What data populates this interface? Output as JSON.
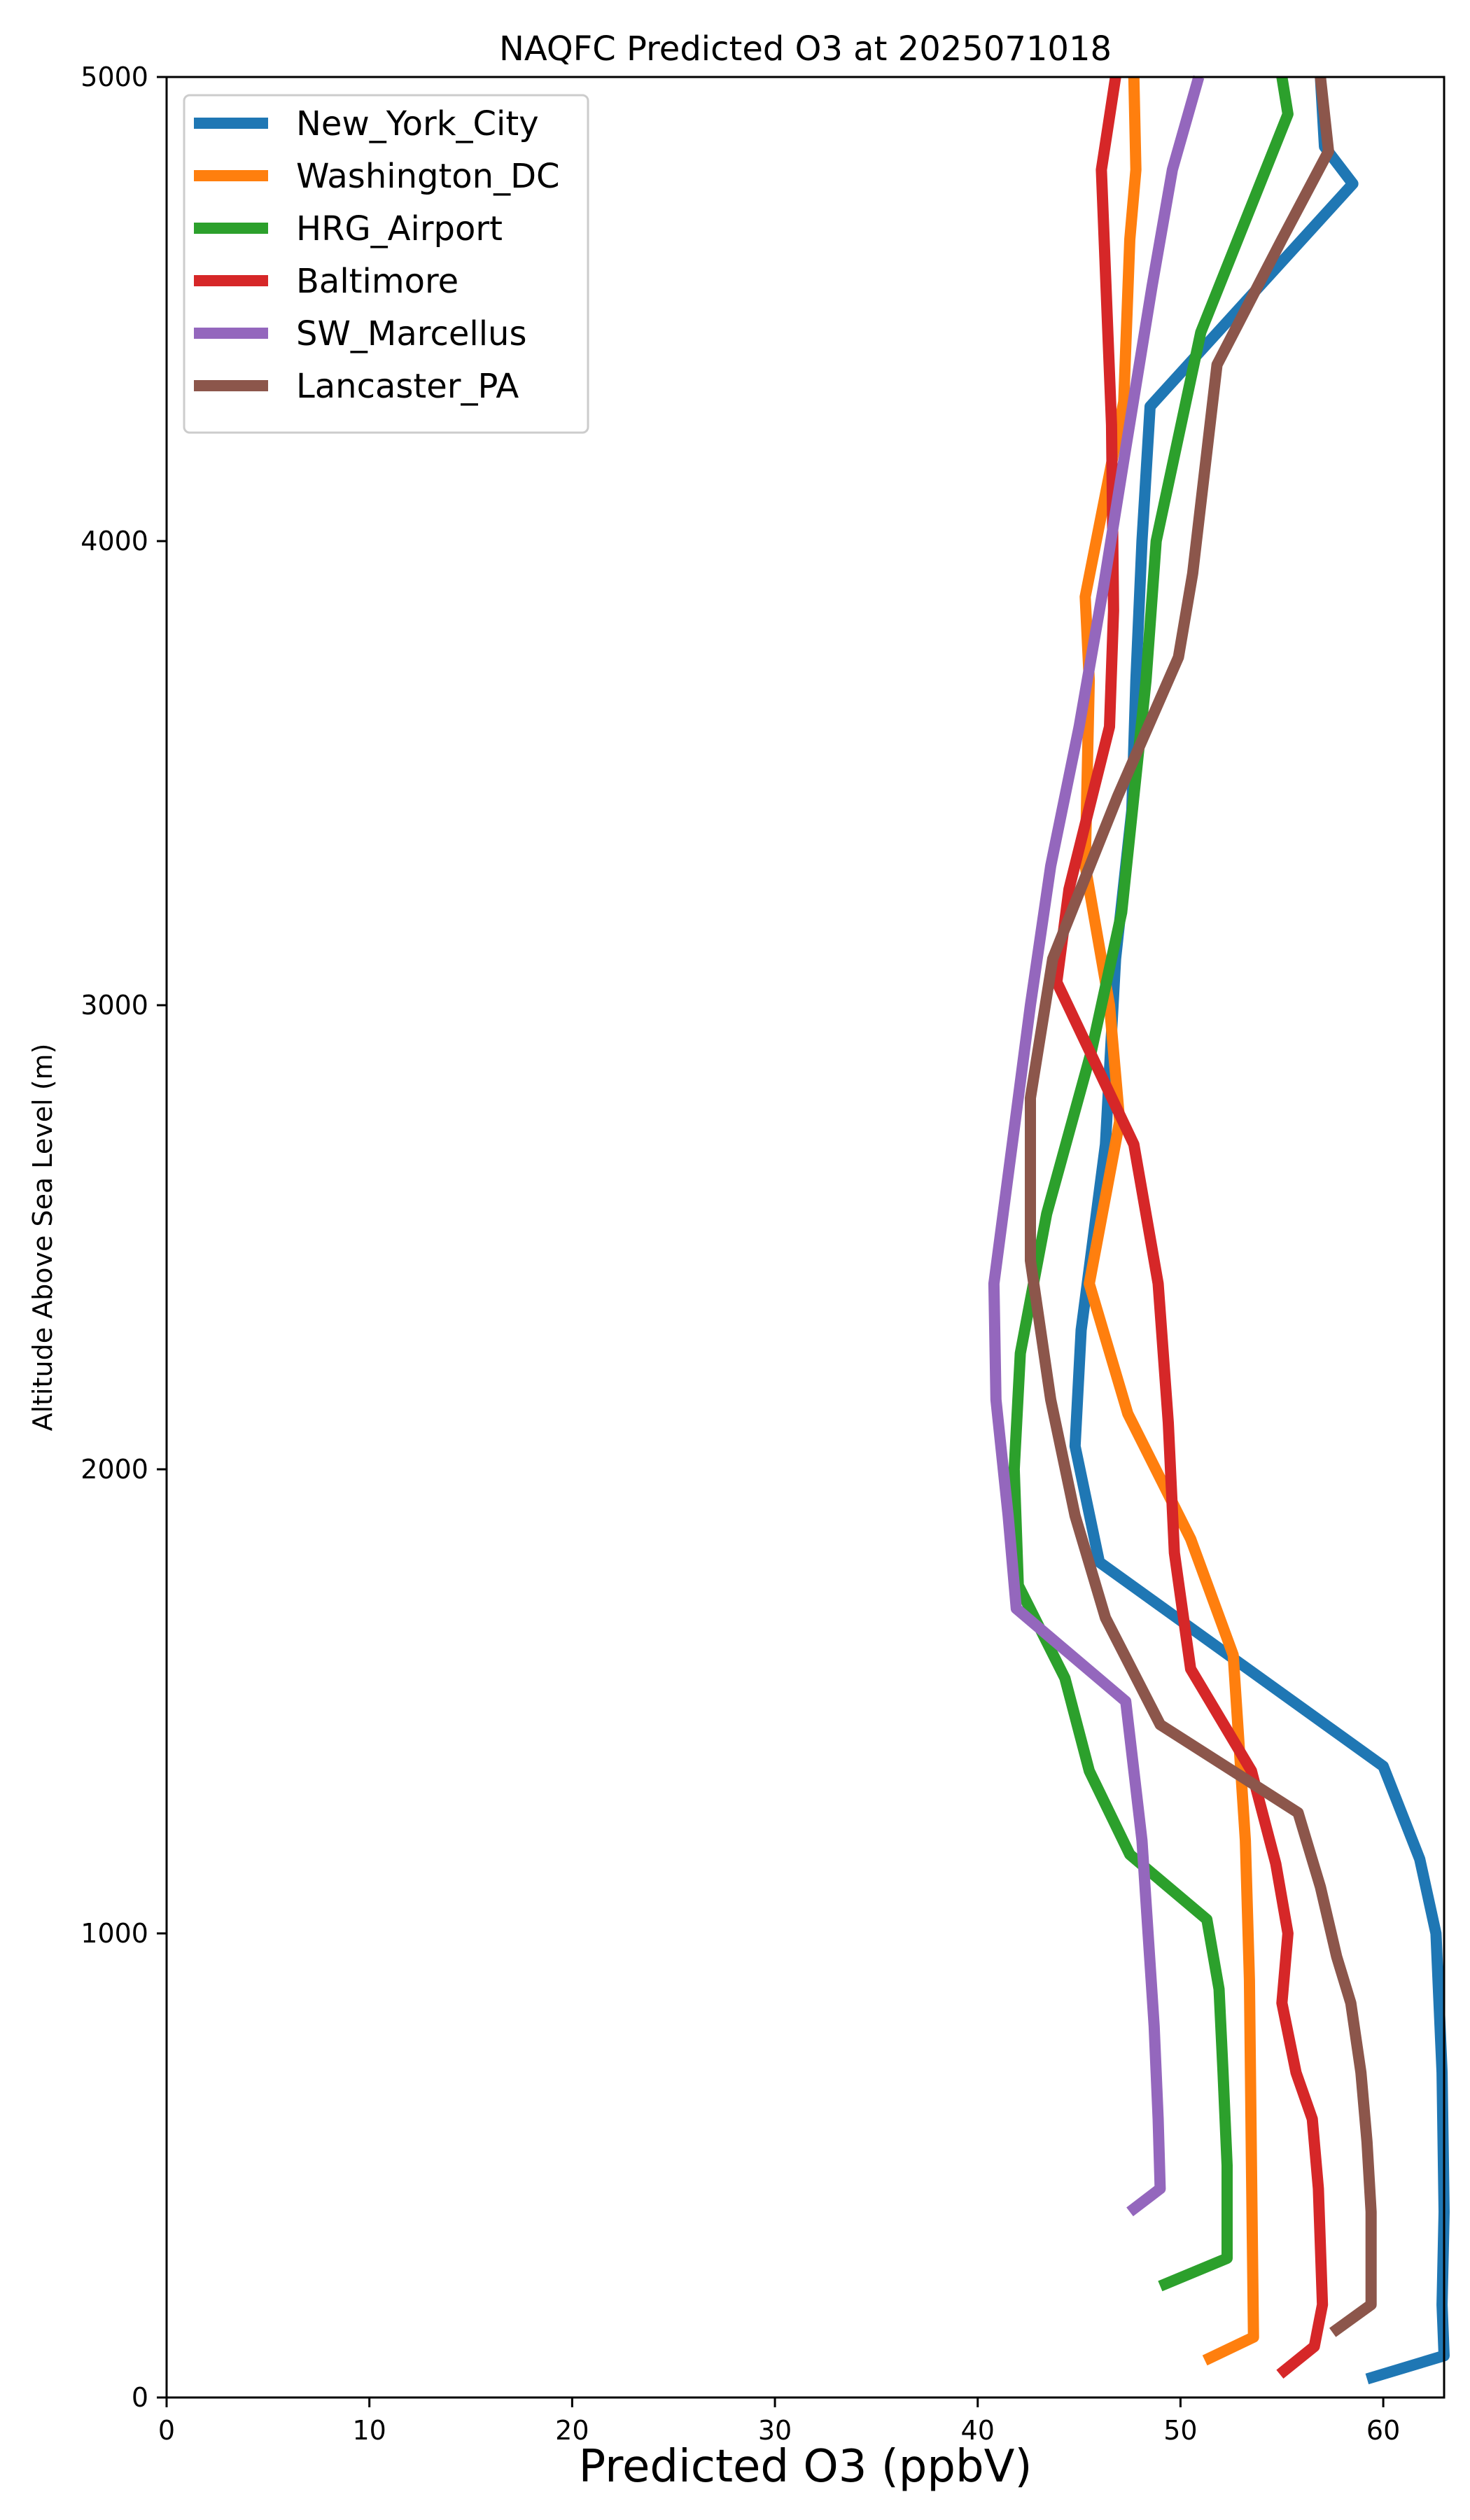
{
  "chart_data": {
    "type": "line",
    "title": "NAQFC Predicted O3 at 2025071018",
    "xlabel": "Predicted O3 (ppbV)",
    "ylabel": "Altitude Above Sea Level (m)",
    "xlim": [
      0,
      63
    ],
    "ylim": [
      0,
      5000
    ],
    "xticks": [
      0,
      10,
      20,
      30,
      40,
      50,
      60
    ],
    "yticks": [
      0,
      1000,
      2000,
      3000,
      4000,
      5000
    ],
    "grid": false,
    "legend_position": "top-left",
    "series": [
      {
        "name": "New_York_City",
        "color": "#1f77b4",
        "x": [
          59.2,
          63.0,
          62.9,
          63.0,
          62.9,
          62.6,
          61.8,
          60.0,
          46.0,
          44.8,
          45.1,
          45.4,
          46.3,
          46.8,
          47.6,
          47.8,
          48.1,
          48.5,
          58.5,
          57.1,
          56.9
        ],
        "y": [
          40,
          90,
          200,
          400,
          700,
          1000,
          1160,
          1360,
          1800,
          2050,
          2300,
          2400,
          2700,
          3100,
          3420,
          3700,
          4000,
          4290,
          4770,
          4850,
          5000
        ]
      },
      {
        "name": "Washington_DC",
        "color": "#ff7f0e",
        "x": [
          51.2,
          53.6,
          53.5,
          53.4,
          53.2,
          52.6,
          50.5,
          47.4,
          45.5,
          47.0,
          46.5,
          45.3,
          45.5,
          45.3,
          47.2,
          47.5,
          47.8,
          47.7
        ],
        "y": [
          80,
          130,
          500,
          900,
          1200,
          1600,
          1850,
          2120,
          2400,
          2750,
          3000,
          3300,
          3700,
          3880,
          4300,
          4650,
          4800,
          5000
        ]
      },
      {
        "name": "HRG_Airport",
        "color": "#2ca02c",
        "x": [
          49.0,
          52.3,
          52.3,
          52.1,
          51.9,
          51.3,
          47.5,
          45.5,
          44.3,
          42.0,
          41.8,
          42.1,
          43.4,
          45.6,
          47.1,
          48.3,
          48.8,
          51.0,
          55.3,
          55.0
        ],
        "y": [
          240,
          300,
          500,
          700,
          880,
          1030,
          1170,
          1350,
          1550,
          1750,
          2000,
          2250,
          2550,
          2900,
          3200,
          3700,
          4000,
          4450,
          4920,
          5000
        ]
      },
      {
        "name": "Baltimore",
        "color": "#d62728",
        "x": [
          54.9,
          56.6,
          57.0,
          56.8,
          56.5,
          55.7,
          55.0,
          55.3,
          54.7,
          53.5,
          50.5,
          49.7,
          49.4,
          48.9,
          47.7,
          43.9,
          44.5,
          46.5,
          46.7,
          46.6,
          46.1,
          46.8
        ],
        "y": [
          50,
          110,
          200,
          450,
          600,
          700,
          850,
          1000,
          1150,
          1350,
          1570,
          1820,
          2100,
          2400,
          2700,
          3050,
          3250,
          3600,
          3850,
          4250,
          4800,
          5000
        ]
      },
      {
        "name": "SW_Marcellus",
        "color": "#9467bd",
        "x": [
          47.5,
          49.0,
          48.9,
          48.7,
          48.4,
          48.1,
          47.7,
          47.3,
          41.9,
          41.5,
          40.9,
          40.8,
          41.7,
          42.6,
          43.6,
          45.0,
          46.2,
          47.3,
          48.6,
          49.6,
          50.9
        ],
        "y": [
          400,
          450,
          600,
          800,
          1000,
          1200,
          1350,
          1500,
          1700,
          1900,
          2150,
          2400,
          2700,
          3000,
          3300,
          3600,
          3900,
          4200,
          4550,
          4800,
          5000
        ]
      },
      {
        "name": "Lancaster_PA",
        "color": "#8c564b",
        "x": [
          57.5,
          59.4,
          59.4,
          59.2,
          58.9,
          58.4,
          57.7,
          56.9,
          55.8,
          49.0,
          46.3,
          44.8,
          43.6,
          42.6,
          42.6,
          43.7,
          46.9,
          49.9,
          50.6,
          51.8,
          55.0,
          57.3,
          56.9
        ],
        "y": [
          140,
          200,
          400,
          550,
          700,
          850,
          950,
          1100,
          1260,
          1450,
          1680,
          1900,
          2150,
          2450,
          2800,
          3100,
          3450,
          3750,
          3930,
          4380,
          4650,
          4840,
          5000
        ]
      }
    ]
  }
}
